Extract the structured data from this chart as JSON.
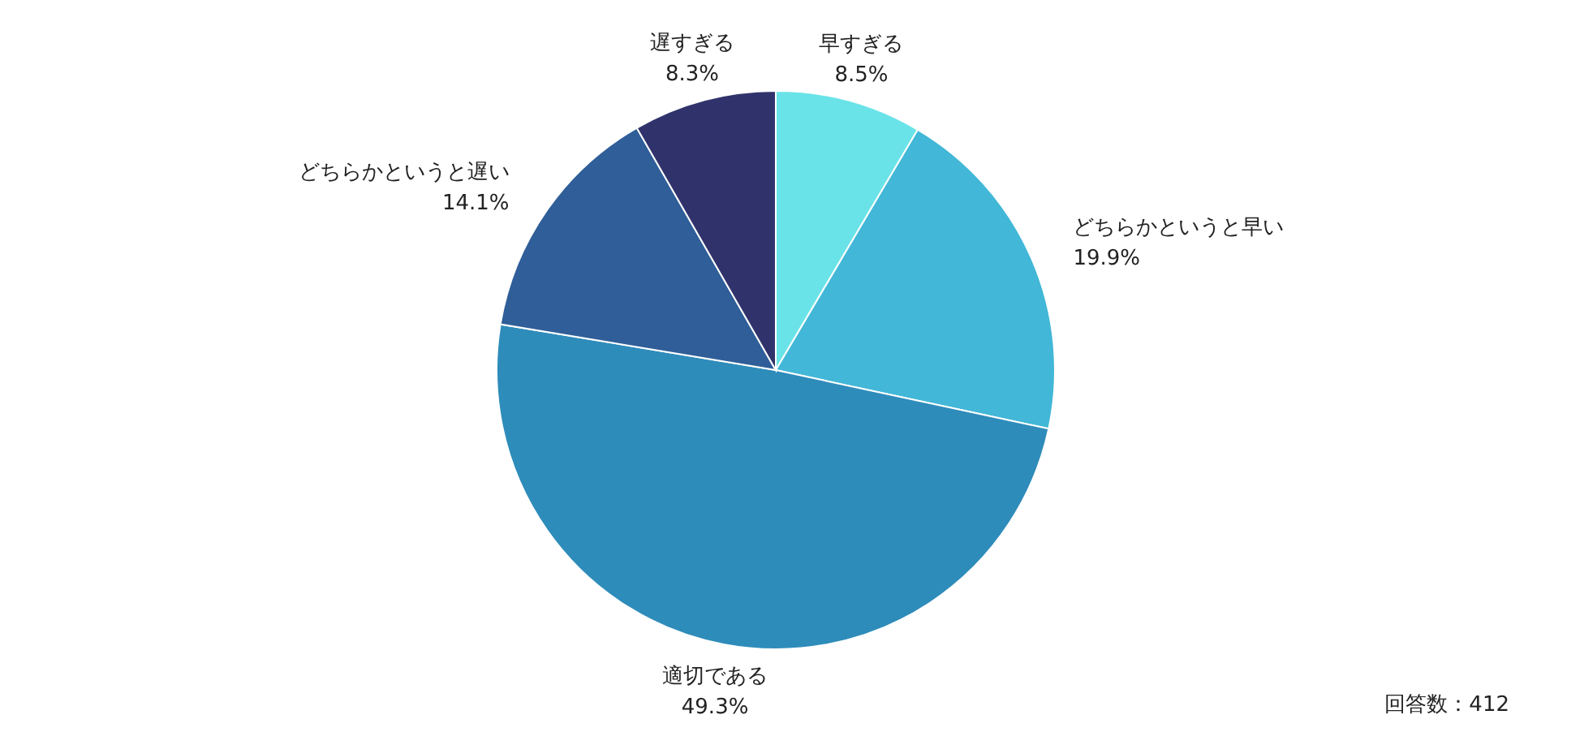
{
  "chart_data": {
    "type": "pie",
    "categories": [
      "早すぎる",
      "どちらかというと早い",
      "適切である",
      "どちらかというと遅い",
      "遅すぎる"
    ],
    "values": [
      8.5,
      19.9,
      49.3,
      14.1,
      8.3
    ],
    "colors": [
      "#6ae3e8",
      "#42b7d7",
      "#2e8cba",
      "#2f5e98",
      "#30336b"
    ],
    "value_labels": [
      "8.5%",
      "19.9%",
      "49.3%",
      "14.1%",
      "8.3%"
    ],
    "annotations": [
      "回答数：412"
    ]
  }
}
